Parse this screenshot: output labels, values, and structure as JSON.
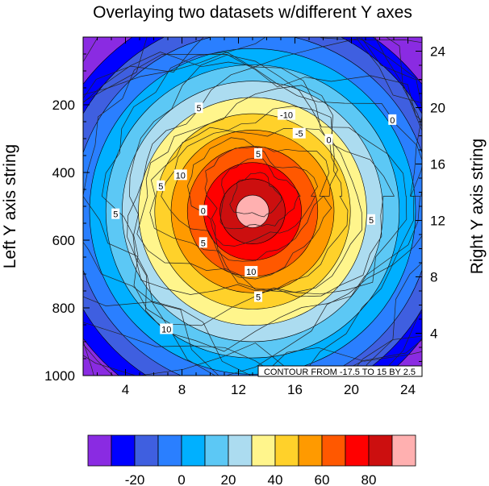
{
  "chart_data": {
    "type": "contour",
    "title": "Overlaying two datasets w/different Y axes",
    "left_ylabel": "Left Y axis string",
    "right_ylabel": "Right Y axis string",
    "info_label": "CONTOUR FROM -17.5 TO 15 BY 2.5",
    "x_range": [
      1,
      25
    ],
    "x_ticks": [
      "4",
      "8",
      "12",
      "16",
      "20",
      "24"
    ],
    "x_tick_values": [
      4,
      8,
      12,
      16,
      20,
      24
    ],
    "left_y_range": [
      0,
      1000
    ],
    "left_y_ticks": [
      "200",
      "400",
      "600",
      "800",
      "1000"
    ],
    "left_y_tick_values": [
      200,
      400,
      600,
      800,
      1000
    ],
    "right_y_range": [
      1,
      25
    ],
    "right_y_ticks": [
      "4",
      "8",
      "12",
      "16",
      "20",
      "24"
    ],
    "right_y_tick_values": [
      4,
      8,
      12,
      16,
      20,
      24
    ],
    "filled_field": {
      "center_x": 13,
      "center_left_y": 515,
      "max_value": 100,
      "min_value": -30,
      "band_width": 10
    },
    "colorbar": {
      "labels": [
        "-20",
        "0",
        "20",
        "40",
        "60",
        "80"
      ],
      "label_values": [
        -20,
        0,
        20,
        40,
        60,
        80
      ],
      "levels": [
        -30,
        -20,
        -10,
        0,
        10,
        20,
        30,
        40,
        50,
        60,
        70,
        80,
        90
      ],
      "colors": [
        "#8a2be2",
        "#0000ff",
        "#3f5fe0",
        "#2a7fff",
        "#00b0ff",
        "#5cc8f5",
        "#acdcf0",
        "#fff58c",
        "#ffd12a",
        "#ff9a00",
        "#ff5800",
        "#ff0000",
        "#cc0f0f",
        "#ffb0b0"
      ]
    },
    "line_contour_labels": [
      {
        "text": "-10",
        "x": 15.4,
        "left_y": 230
      },
      {
        "text": "-5",
        "x": 16.3,
        "left_y": 285
      },
      {
        "text": "0",
        "x": 18.4,
        "left_y": 303
      },
      {
        "text": "0",
        "x": 22.9,
        "left_y": 245
      },
      {
        "text": "5",
        "x": 9.2,
        "left_y": 210
      },
      {
        "text": "5",
        "x": 13.4,
        "left_y": 345
      },
      {
        "text": "10",
        "x": 7.9,
        "left_y": 408
      },
      {
        "text": "5",
        "x": 6.5,
        "left_y": 440
      },
      {
        "text": "0",
        "x": 9.5,
        "left_y": 513
      },
      {
        "text": "5",
        "x": 3.3,
        "left_y": 523
      },
      {
        "text": "5",
        "x": 9.5,
        "left_y": 608
      },
      {
        "text": "10",
        "x": 12.9,
        "left_y": 693
      },
      {
        "text": "5",
        "x": 13.4,
        "left_y": 768
      },
      {
        "text": "10",
        "x": 6.9,
        "left_y": 863
      },
      {
        "text": "5",
        "x": 21.4,
        "left_y": 540
      }
    ]
  }
}
